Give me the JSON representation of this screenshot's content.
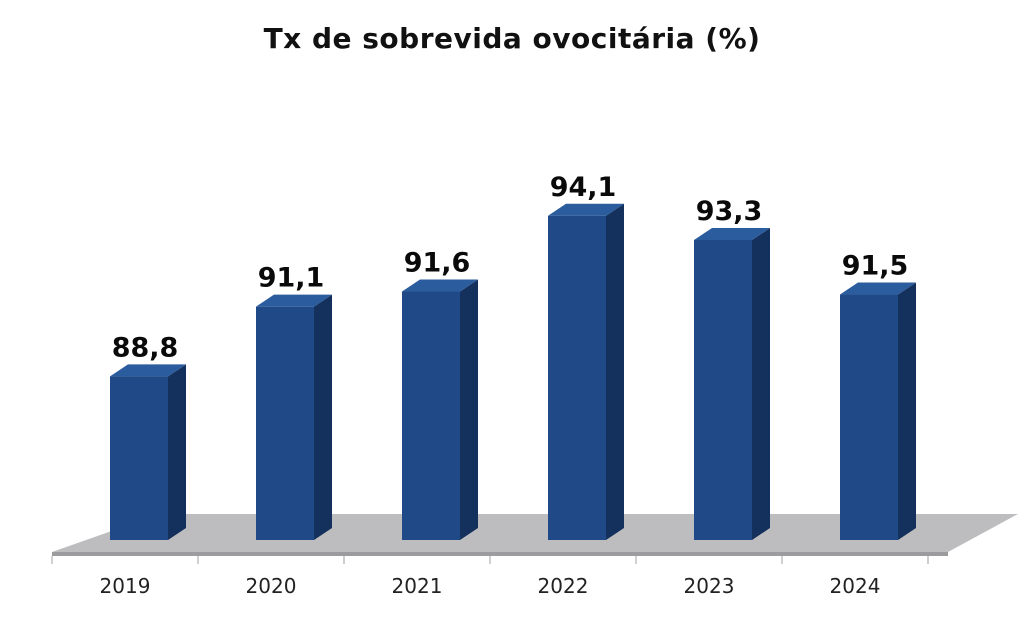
{
  "chart_data": {
    "type": "bar",
    "title": "Tx de sobrevida ovocitária (%)",
    "categories": [
      "2019",
      "2020",
      "2021",
      "2022",
      "2023",
      "2024"
    ],
    "values": [
      88.8,
      91.1,
      91.6,
      94.1,
      93.3,
      91.5
    ],
    "value_labels": [
      "88,8",
      "91,1",
      "91,6",
      "94,1",
      "93,3",
      "91,5"
    ],
    "xlabel": "",
    "ylabel": "",
    "ylim": [
      83.4,
      96.6
    ],
    "grid": false,
    "legend": "none",
    "style": "3d-columns",
    "colors": {
      "bar_front": "#1f4a87",
      "bar_side": "#14305c",
      "bar_top": "#2b5c9e",
      "floor": "#bdbcbe",
      "axis": "#a0a0a0"
    }
  }
}
